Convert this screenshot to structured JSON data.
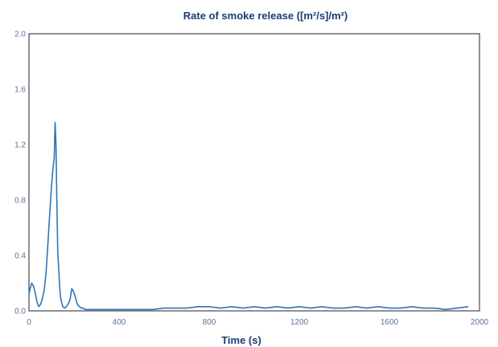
{
  "chart_data": {
    "type": "line",
    "title": "Rate of smoke release ([m²/s]/m²)",
    "xlabel": "Time (s)",
    "ylabel": "",
    "xlim": [
      0,
      2000
    ],
    "ylim": [
      0,
      2.0
    ],
    "xticks": [
      0,
      400,
      800,
      1200,
      1600,
      2000
    ],
    "xtick_labels": [
      "0",
      "400",
      "800",
      "1200",
      "1600",
      "2000"
    ],
    "yticks": [
      0,
      0.4,
      0.8,
      1.2,
      1.6,
      2.0
    ],
    "ytick_labels": [
      "0.0",
      "0.4",
      "0.8",
      "1.2",
      "1.6",
      "2.0"
    ],
    "grid": false,
    "line_color": "#2e75b6",
    "series": [
      {
        "name": "",
        "x": [
          0,
          5,
          12,
          20,
          28,
          36,
          44,
          52,
          60,
          68,
          76,
          84,
          92,
          100,
          106,
          112,
          116,
          120,
          124,
          128,
          132,
          136,
          140,
          145,
          150,
          158,
          166,
          174,
          182,
          190,
          198,
          206,
          212,
          218,
          224,
          232,
          240,
          250,
          260,
          280,
          300,
          350,
          400,
          450,
          500,
          550,
          600,
          650,
          700,
          750,
          800,
          850,
          900,
          950,
          1000,
          1050,
          1100,
          1150,
          1200,
          1250,
          1300,
          1350,
          1400,
          1450,
          1500,
          1550,
          1600,
          1650,
          1700,
          1750,
          1800,
          1850,
          1900,
          1950
        ],
        "y": [
          0.12,
          0.16,
          0.2,
          0.18,
          0.13,
          0.06,
          0.03,
          0.05,
          0.09,
          0.15,
          0.28,
          0.48,
          0.7,
          0.9,
          1.02,
          1.1,
          1.36,
          1.2,
          0.78,
          0.42,
          0.3,
          0.18,
          0.1,
          0.06,
          0.03,
          0.02,
          0.03,
          0.05,
          0.08,
          0.16,
          0.14,
          0.1,
          0.06,
          0.04,
          0.03,
          0.02,
          0.02,
          0.01,
          0.01,
          0.01,
          0.01,
          0.01,
          0.01,
          0.01,
          0.01,
          0.01,
          0.02,
          0.02,
          0.02,
          0.03,
          0.03,
          0.02,
          0.03,
          0.02,
          0.03,
          0.02,
          0.03,
          0.02,
          0.03,
          0.02,
          0.03,
          0.02,
          0.02,
          0.03,
          0.02,
          0.03,
          0.02,
          0.02,
          0.03,
          0.02,
          0.02,
          0.01,
          0.02,
          0.03
        ]
      }
    ]
  }
}
